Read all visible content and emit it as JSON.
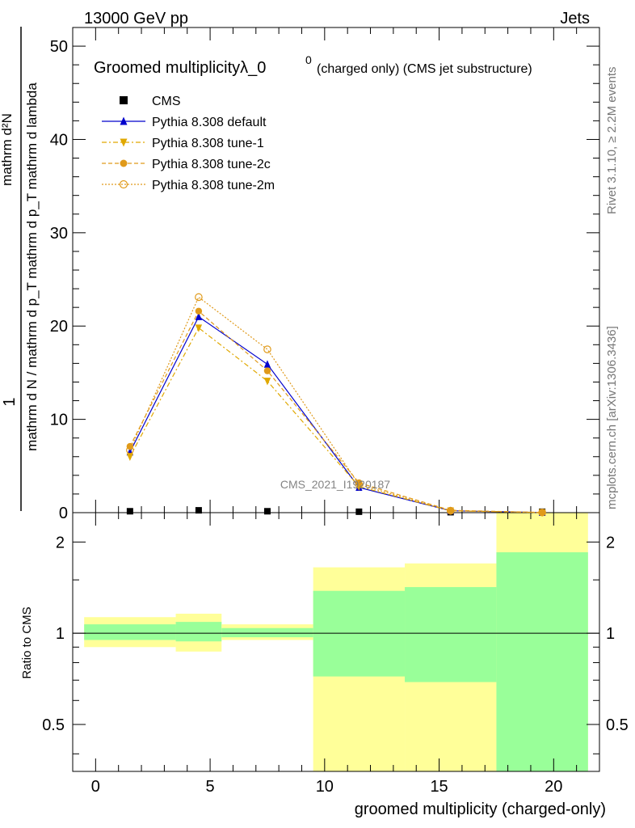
{
  "header": {
    "energy": "13000 GeV pp",
    "category": "Jets"
  },
  "side": {
    "rivet": "Rivet 3.1.10, ≥ 2.2M events",
    "source": "mcplots.cern.ch [arXiv:1306.3436]"
  },
  "watermark": "CMS_2021_I1920187",
  "chart_data": [
    {
      "type": "line",
      "title_main": "Groomed multiplicityλ_0",
      "title_sup": "0",
      "title_note": "(charged only) (CMS jet substructure)",
      "ylabel_top": "1",
      "ylabel_bottom": "mathrm d N / mathrm d p_T mathrm d p_T mathrm d lambda",
      "ylabel_num": "mathrm d²N",
      "ylim": [
        0,
        52
      ],
      "yticks": [
        "0",
        "10",
        "20",
        "30",
        "40",
        "50"
      ],
      "xlim": [
        -1,
        22
      ],
      "x": [
        1.5,
        4.5,
        7.5,
        11.5,
        15.5,
        19.5
      ],
      "series": [
        {
          "name": "CMS",
          "color": "#000000",
          "marker": "square",
          "values": [
            0.15,
            0.25,
            0.15,
            0.1,
            0.05,
            0.1
          ]
        },
        {
          "name": "Pythia 8.308 default",
          "color": "#0000cc",
          "marker": "triangle-up",
          "dash": "",
          "values": [
            6.5,
            21.0,
            15.9,
            2.7,
            0.2,
            0.02
          ]
        },
        {
          "name": "Pythia 8.308 tune-1",
          "color": "#e0a800",
          "marker": "triangle-down",
          "dash": "6,3,2,3",
          "values": [
            6.0,
            19.8,
            14.1,
            2.8,
            0.2,
            0.02
          ]
        },
        {
          "name": "Pythia 8.308 tune-2c",
          "color": "#e09a1a",
          "marker": "circle",
          "dash": "5,3",
          "values": [
            7.1,
            21.6,
            15.2,
            3.2,
            0.25,
            0.03
          ]
        },
        {
          "name": "Pythia 8.308 tune-2m",
          "color": "#e09a1a",
          "marker": "circle-open",
          "dash": "2,2",
          "values": [
            6.7,
            23.1,
            17.5,
            3.0,
            0.2,
            0.02
          ]
        }
      ]
    },
    {
      "type": "area",
      "ylabel": "Ratio to CMS",
      "xlabel": "groomed multiplicity (charged-only)",
      "ylog": true,
      "ylim": [
        0.35,
        2.5
      ],
      "yticks": [
        {
          "v": 0.5,
          "label": "0.5"
        },
        {
          "v": 1,
          "label": "1"
        },
        {
          "v": 2,
          "label": "2"
        }
      ],
      "xticks": [
        "0",
        "5",
        "10",
        "15",
        "20"
      ],
      "bands": [
        {
          "x0": -0.5,
          "x1": 3.5,
          "y_lo": 0.9,
          "y_hi": 1.13,
          "g_lo": 0.95,
          "g_hi": 1.07
        },
        {
          "x0": 3.5,
          "x1": 5.5,
          "y_lo": 0.87,
          "y_hi": 1.16,
          "g_lo": 0.94,
          "g_hi": 1.09
        },
        {
          "x0": 5.5,
          "x1": 9.5,
          "y_lo": 0.95,
          "y_hi": 1.07,
          "g_lo": 0.97,
          "g_hi": 1.04
        },
        {
          "x0": 9.5,
          "x1": 13.5,
          "y_lo": 0.0,
          "y_hi": 1.65,
          "g_lo": 0.72,
          "g_hi": 1.38
        },
        {
          "x0": 13.5,
          "x1": 17.5,
          "y_lo": 0.0,
          "y_hi": 1.7,
          "g_lo": 0.69,
          "g_hi": 1.42
        },
        {
          "x0": 17.5,
          "x1": 21.5,
          "y_lo": 0.0,
          "y_hi": 9.9,
          "g_lo": 0.0,
          "g_hi": 1.85
        }
      ],
      "colors": {
        "yellow": "#ffff99",
        "green": "#99ff99"
      }
    }
  ]
}
